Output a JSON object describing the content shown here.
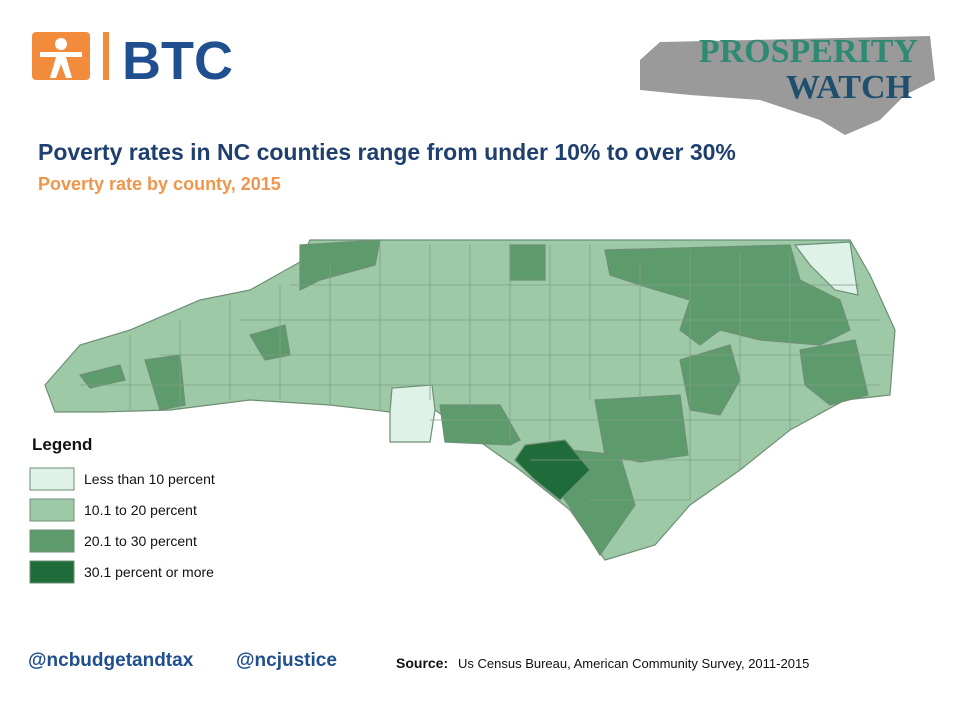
{
  "header": {
    "logo_text": "BTC",
    "brand_line1": "PROSPERITY",
    "brand_line2": "WATCH"
  },
  "title": "Poverty rates in NC counties range from under 10% to over 30%",
  "subtitle": "Poverty rate by county, 2015",
  "legend": {
    "title": "Legend",
    "items": [
      {
        "label": "Less than 10 percent",
        "color": "#dff2e8"
      },
      {
        "label": "10.1 to 20 percent",
        "color": "#9dc9a6"
      },
      {
        "label": "20.1 to 30 percent",
        "color": "#5e9b6c"
      },
      {
        "label": "30.1 percent or more",
        "color": "#1f6b3a"
      }
    ]
  },
  "footer": {
    "handle1": "@ncbudgetandtax",
    "handle2": "@ncjustice",
    "source_label": "Source:",
    "source_text": "Us Census Bureau, American Community Survey, 2011-2015"
  }
}
